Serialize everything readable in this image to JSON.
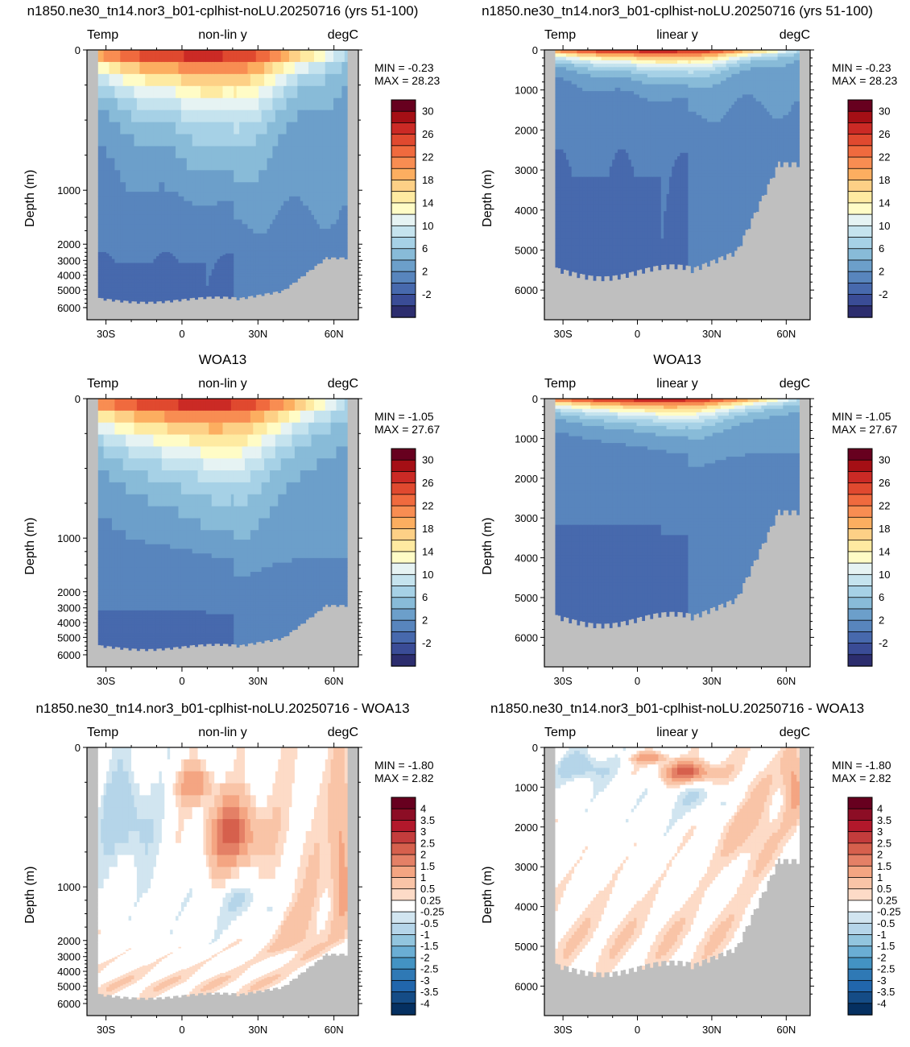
{
  "panels": [
    {
      "title": "n1850.ne30_tn14.nor3_b01-cplhist-noLU.20250716 (yrs 51-100)",
      "left": "Temp",
      "center": "non-lin y",
      "right": "degC",
      "ylabel": "Depth (m)",
      "yticks": [
        "0",
        "1000",
        "2000",
        "3000",
        "4000",
        "5000",
        "6000"
      ],
      "xticks": [
        "30S",
        "0",
        "30N",
        "60N"
      ],
      "min_text": "MIN =  -0.23",
      "max_text": "MAX =  28.23"
    },
    {
      "title": "n1850.ne30_tn14.nor3_b01-cplhist-noLU.20250716 (yrs 51-100)",
      "left": "Temp",
      "center": "linear y",
      "right": "degC",
      "ylabel": "Depth (m)",
      "yticks": [
        "0",
        "1000",
        "2000",
        "3000",
        "4000",
        "5000",
        "6000"
      ],
      "xticks": [
        "30S",
        "0",
        "30N",
        "60N"
      ],
      "min_text": "MIN =  -0.23",
      "max_text": "MAX =  28.23"
    },
    {
      "title": "WOA13",
      "left": "Temp",
      "center": "non-lin y",
      "right": "degC",
      "ylabel": "Depth (m)",
      "yticks": [
        "0",
        "1000",
        "2000",
        "3000",
        "4000",
        "5000",
        "6000"
      ],
      "xticks": [
        "30S",
        "0",
        "30N",
        "60N"
      ],
      "min_text": "MIN =  -1.05",
      "max_text": "MAX =  27.67"
    },
    {
      "title": "WOA13",
      "left": "Temp",
      "center": "linear y",
      "right": "degC",
      "ylabel": "Depth (m)",
      "yticks": [
        "0",
        "1000",
        "2000",
        "3000",
        "4000",
        "5000",
        "6000"
      ],
      "xticks": [
        "30S",
        "0",
        "30N",
        "60N"
      ],
      "min_text": "MIN =  -1.05",
      "max_text": "MAX =  27.67"
    },
    {
      "title": "n1850.ne30_tn14.nor3_b01-cplhist-noLU.20250716 - WOA13",
      "left": "Temp",
      "center": "non-lin y",
      "right": "degC",
      "ylabel": "Depth (m)",
      "yticks": [
        "0",
        "1000",
        "2000",
        "3000",
        "4000",
        "5000",
        "6000"
      ],
      "xticks": [
        "30S",
        "0",
        "30N",
        "60N"
      ],
      "min_text": "MIN =  -1.80",
      "max_text": "MAX =   2.82"
    },
    {
      "title": "n1850.ne30_tn14.nor3_b01-cplhist-noLU.20250716 - WOA13",
      "left": "Temp",
      "center": "linear y",
      "right": "degC",
      "ylabel": "Depth (m)",
      "yticks": [
        "0",
        "1000",
        "2000",
        "3000",
        "4000",
        "5000",
        "6000"
      ],
      "xticks": [
        "30S",
        "0",
        "30N",
        "60N"
      ],
      "min_text": "MIN =  -1.80",
      "max_text": "MAX =   2.82"
    }
  ],
  "colorbars": {
    "temp": {
      "labels": [
        "30",
        "26",
        "22",
        "18",
        "14",
        "10",
        "6",
        "2",
        "-2"
      ],
      "colors": [
        "#67001f",
        "#a50f15",
        "#cb2a25",
        "#e0492f",
        "#f06a3e",
        "#f88d52",
        "#fcae60",
        "#fdd086",
        "#feeaa1",
        "#fffcc6",
        "#e6f3f3",
        "#c5e3ee",
        "#a6d1e6",
        "#88bbd8",
        "#6c9fca",
        "#5885bd",
        "#4769ad",
        "#3a4c96",
        "#2c2d6e"
      ]
    },
    "diff": {
      "labels": [
        "4",
        "3.5",
        "3",
        "2.5",
        "2",
        "1.5",
        "1",
        "0.5",
        "0.25",
        "-0.25",
        "-0.5",
        "-1",
        "-1.5",
        "-2",
        "-2.5",
        "-3",
        "-3.5",
        "-4"
      ],
      "colors": [
        "#67001f",
        "#8c0d25",
        "#b2182b",
        "#c43c3c",
        "#d6604d",
        "#e48066",
        "#f4a582",
        "#f9c4a7",
        "#fddbc7",
        "#ffffff",
        "#d1e5f0",
        "#b5d5e9",
        "#92c5de",
        "#6aaed4",
        "#4393c3",
        "#2f79b5",
        "#2166ac",
        "#154c86",
        "#053061"
      ]
    }
  },
  "chart_data": [
    {
      "type": "heatmap",
      "title": "n1850.ne30_tn14.nor3_b01-cplhist-noLU.20250716 (yrs 51-100)",
      "variable": "Temp",
      "units": "degC",
      "x": [
        "30S",
        "0",
        "30N",
        "60N"
      ],
      "ylabel": "Depth (m)",
      "y_scale": "non-lin",
      "ylim": [
        0,
        6000
      ],
      "min": -0.23,
      "max": 28.23,
      "contour_levels": [
        -2,
        0,
        2,
        4,
        6,
        8,
        10,
        12,
        14,
        16,
        18,
        20,
        22,
        24,
        26,
        28,
        30
      ]
    },
    {
      "type": "heatmap",
      "title": "n1850.ne30_tn14.nor3_b01-cplhist-noLU.20250716 (yrs 51-100)",
      "variable": "Temp",
      "units": "degC",
      "x": [
        "30S",
        "0",
        "30N",
        "60N"
      ],
      "ylabel": "Depth (m)",
      "y_scale": "linear",
      "ylim": [
        0,
        6000
      ],
      "min": -0.23,
      "max": 28.23,
      "contour_levels": [
        -2,
        0,
        2,
        4,
        6,
        8,
        10,
        12,
        14,
        16,
        18,
        20,
        22,
        24,
        26,
        28,
        30
      ]
    },
    {
      "type": "heatmap",
      "title": "WOA13",
      "variable": "Temp",
      "units": "degC",
      "x": [
        "30S",
        "0",
        "30N",
        "60N"
      ],
      "ylabel": "Depth (m)",
      "y_scale": "non-lin",
      "ylim": [
        0,
        6000
      ],
      "min": -1.05,
      "max": 27.67,
      "contour_levels": [
        -2,
        0,
        2,
        4,
        6,
        8,
        10,
        12,
        14,
        16,
        18,
        20,
        22,
        24,
        26,
        28,
        30
      ]
    },
    {
      "type": "heatmap",
      "title": "WOA13",
      "variable": "Temp",
      "units": "degC",
      "x": [
        "30S",
        "0",
        "30N",
        "60N"
      ],
      "ylabel": "Depth (m)",
      "y_scale": "linear",
      "ylim": [
        0,
        6000
      ],
      "min": -1.05,
      "max": 27.67,
      "contour_levels": [
        -2,
        0,
        2,
        4,
        6,
        8,
        10,
        12,
        14,
        16,
        18,
        20,
        22,
        24,
        26,
        28,
        30
      ]
    },
    {
      "type": "heatmap",
      "title": "n1850.ne30_tn14.nor3_b01-cplhist-noLU.20250716 - WOA13",
      "variable": "Temp",
      "units": "degC",
      "x": [
        "30S",
        "0",
        "30N",
        "60N"
      ],
      "ylabel": "Depth (m)",
      "y_scale": "non-lin",
      "ylim": [
        0,
        6000
      ],
      "min": -1.8,
      "max": 2.82,
      "contour_levels": [
        -4,
        -3.5,
        -3,
        -2.5,
        -2,
        -1.5,
        -1,
        -0.5,
        -0.25,
        0.25,
        0.5,
        1,
        1.5,
        2,
        2.5,
        3,
        3.5,
        4
      ]
    },
    {
      "type": "heatmap",
      "title": "n1850.ne30_tn14.nor3_b01-cplhist-noLU.20250716 - WOA13",
      "variable": "Temp",
      "units": "degC",
      "x": [
        "30S",
        "0",
        "30N",
        "60N"
      ],
      "ylabel": "Depth (m)",
      "y_scale": "linear",
      "ylim": [
        0,
        6000
      ],
      "min": -1.8,
      "max": 2.82,
      "contour_levels": [
        -4,
        -3.5,
        -3,
        -2.5,
        -2,
        -1.5,
        -1,
        -0.5,
        -0.25,
        0.25,
        0.5,
        1,
        1.5,
        2,
        2.5,
        3,
        3.5,
        4
      ]
    }
  ]
}
